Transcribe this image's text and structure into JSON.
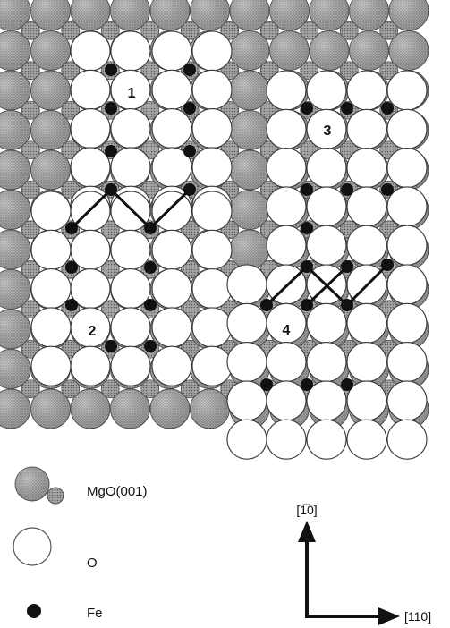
{
  "islands": [
    {
      "id": "island-1",
      "label": "1"
    },
    {
      "id": "island-2",
      "label": "2"
    },
    {
      "id": "island-3",
      "label": "3"
    },
    {
      "id": "island-4",
      "label": "4"
    }
  ],
  "legend": {
    "substrate": "MgO(001)",
    "oxygen": "O",
    "iron": "Fe"
  },
  "axes": {
    "vertical": "[1̅0]",
    "horizontal": "[110]"
  },
  "colors": {
    "substrate": "#a8a8a8",
    "substrate_dark": "#7a7a7a",
    "oxygen_fill": "#ffffff",
    "iron": "#111111",
    "line": "#111111"
  }
}
